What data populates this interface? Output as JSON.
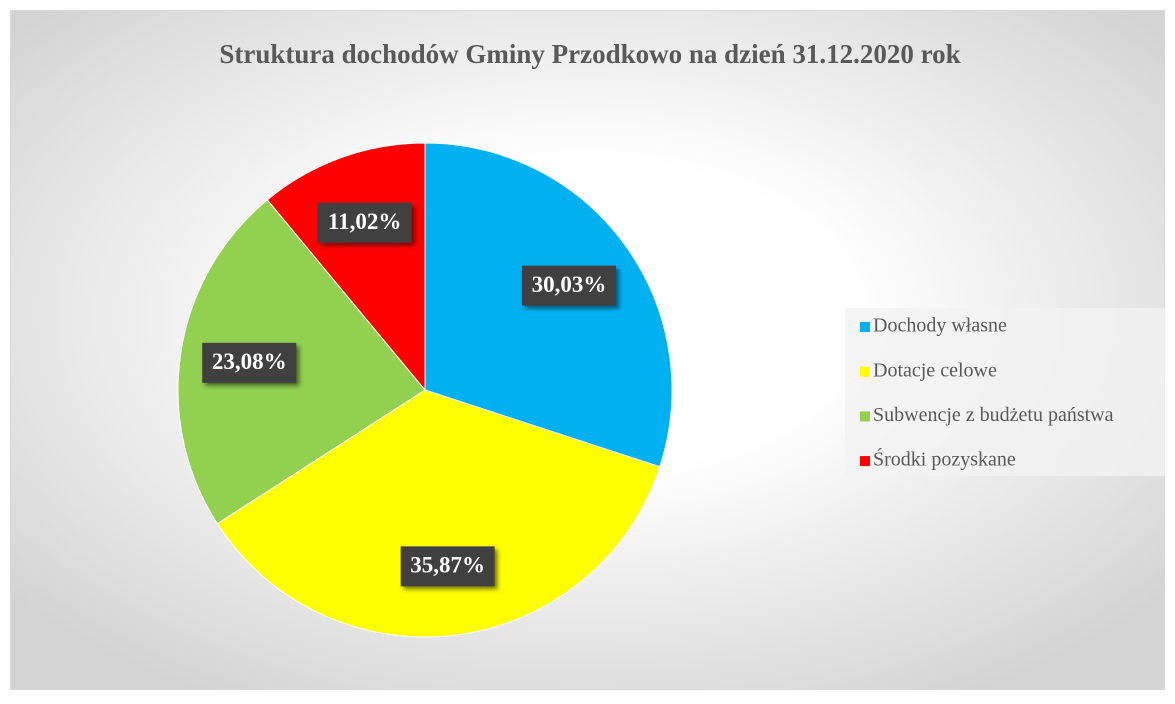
{
  "chart_data": {
    "type": "pie",
    "title": "Struktura dochodów Gminy Przodkowo na dzień 31.12.2020 rok",
    "categories": [
      "Dochody własne",
      "Dotacje celowe",
      "Subwencje z budżetu państwa",
      "Środki pozyskane"
    ],
    "values": [
      30.03,
      35.87,
      23.08,
      11.02
    ],
    "value_labels": [
      "30,03%",
      "35,87%",
      "23,08%",
      "11,02%"
    ],
    "colors": [
      "#00b0f0",
      "#ffff00",
      "#92d050",
      "#ff0000"
    ],
    "legend": "right"
  }
}
